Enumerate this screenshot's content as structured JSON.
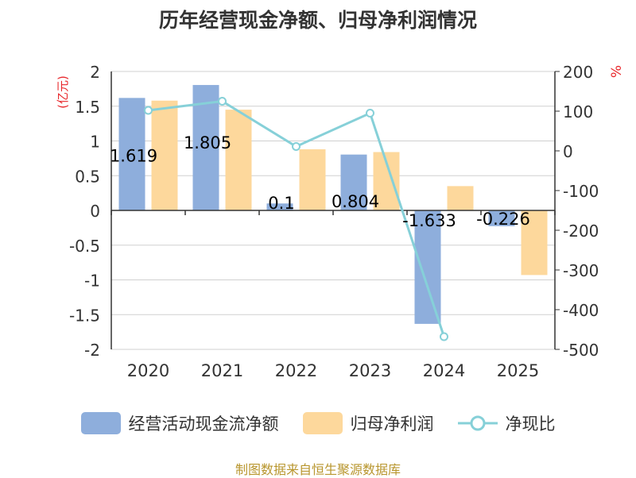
{
  "chart_data": {
    "type": "bar",
    "title": "历年经营现金净额、归母净利润情况",
    "categories": [
      "2020",
      "2021",
      "2022",
      "2023",
      "2024",
      "2025"
    ],
    "series": [
      {
        "name": "经营活动现金流净额",
        "type": "bar",
        "axis": "left",
        "color": "#8eaedc",
        "values": [
          1.619,
          1.805,
          0.1,
          0.804,
          -1.633,
          -0.226
        ]
      },
      {
        "name": "归母净利润",
        "type": "bar",
        "axis": "left",
        "color": "#fdd89c",
        "values": [
          1.58,
          1.45,
          0.88,
          0.84,
          0.35,
          -0.93
        ]
      },
      {
        "name": "净现比",
        "type": "line",
        "axis": "right",
        "color": "#86d0d8",
        "values": [
          102,
          125,
          11,
          95,
          -468,
          null
        ]
      }
    ],
    "data_labels": [
      "1.619",
      "1.805",
      "0.1",
      "0.804",
      "-1.633",
      "-0.226"
    ],
    "left_axis": {
      "label": "(亿元)",
      "ylim": [
        -2,
        2
      ],
      "ticks": [
        "2",
        "1.5",
        "1",
        "0.5",
        "0",
        "-0.5",
        "-1",
        "-1.5",
        "-2"
      ]
    },
    "right_axis": {
      "label": "%",
      "ylim": [
        -500,
        200
      ],
      "ticks": [
        "200",
        "100",
        "0",
        "-100",
        "-200",
        "-300",
        "-400",
        "-500"
      ]
    },
    "legend": {
      "position": "bottom"
    },
    "source": "制图数据来自恒生聚源数据库"
  }
}
